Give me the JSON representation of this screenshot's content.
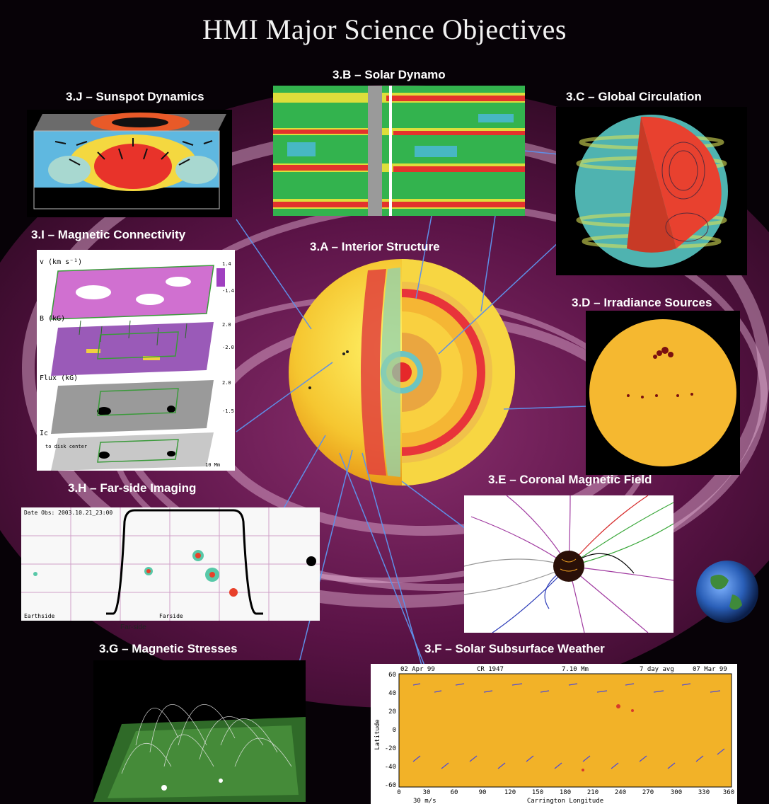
{
  "title": "HMI Major Science Objectives",
  "objectives": [
    {
      "id": "3.A",
      "label": "3.A – Interior Structure"
    },
    {
      "id": "3.B",
      "label": "3.B – Solar Dynamo"
    },
    {
      "id": "3.C",
      "label": "3.C – Global Circulation"
    },
    {
      "id": "3.D",
      "label": "3.D – Irradiance Sources"
    },
    {
      "id": "3.E",
      "label": "3.E – Coronal Magnetic Field"
    },
    {
      "id": "3.F",
      "label": "3.F – Solar Subsurface Weather"
    },
    {
      "id": "3.G",
      "label": "3.G – Magnetic Stresses"
    },
    {
      "id": "3.H",
      "label": "3.H – Far-side Imaging"
    },
    {
      "id": "3.I",
      "label": "3.I – Magnetic Connectivity"
    },
    {
      "id": "3.J",
      "label": "3.J – Sunspot Dynamics"
    }
  ],
  "connectivity": {
    "layer_labels": [
      "v (km s⁻¹)",
      "B (kG)",
      "Flux (kG)",
      "Ic"
    ],
    "v_scale": [
      "1.4",
      "-1.4"
    ],
    "b_scale": [
      "2.0",
      "-2.0"
    ],
    "flux_scale": [
      "2.0",
      "-1.5"
    ],
    "disk_center_note": "to disk center",
    "scale_note": "10 Mm"
  },
  "farside": {
    "date_obs": "Date Obs: 2003.10.21_23:00",
    "earthside": "Earthside",
    "farside": "Farside",
    "caption": "Far-side"
  },
  "weather": {
    "header": [
      "02 Apr 99",
      "CR 1947",
      "7.10 Mm",
      "7 day avg",
      "07 Mar 99"
    ],
    "ylabel": "Latitude",
    "xlabel": "Carrington Longitude",
    "yticks": [
      "60",
      "40",
      "20",
      "0",
      "-20",
      "-40",
      "-60"
    ],
    "xticks": [
      "0",
      "30",
      "60",
      "90",
      "120",
      "150",
      "180",
      "210",
      "240",
      "270",
      "300",
      "330",
      "360"
    ],
    "vector_scale": "30 m/s"
  }
}
